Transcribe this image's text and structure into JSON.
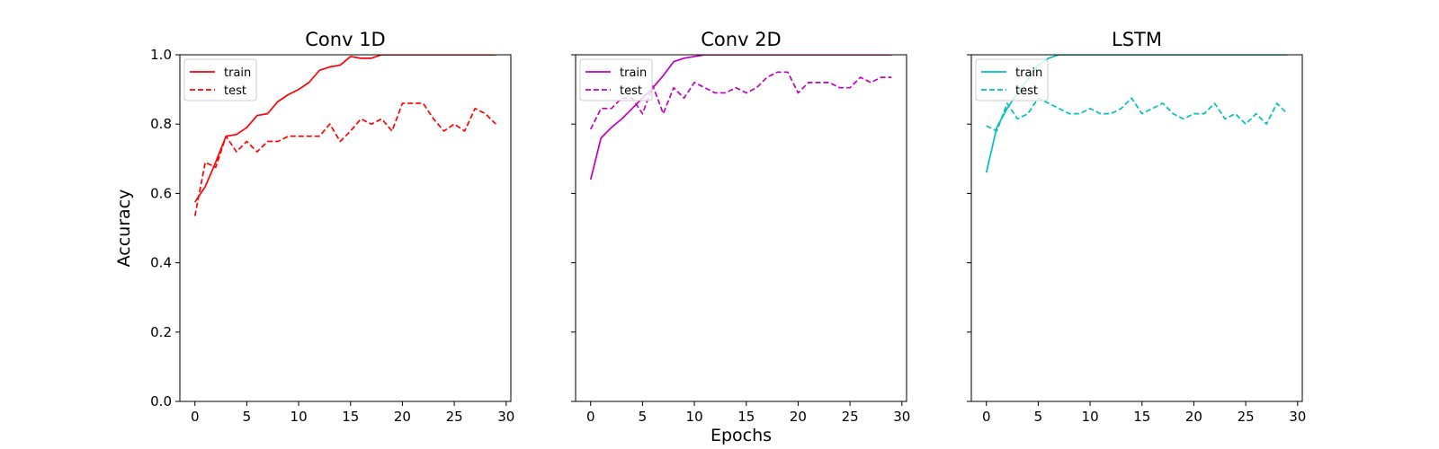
{
  "chart_data": [
    {
      "type": "line",
      "title": "Conv 1D",
      "ylabel": "Accuracy",
      "xlabel": "",
      "xlim": [
        -1.45,
        30.45
      ],
      "ylim": [
        0.0,
        1.0
      ],
      "xticks": [
        0,
        5,
        10,
        15,
        20,
        25,
        30
      ],
      "yticks": [
        0.0,
        0.2,
        0.4,
        0.6,
        0.8,
        1.0
      ],
      "ytick_labels": [
        "0.0",
        "0.2",
        "0.4",
        "0.6",
        "0.8",
        "1.0"
      ],
      "legend_position": "upper-left",
      "color": "#ff0000",
      "series": [
        {
          "name": "train",
          "style": "solid",
          "values": [
            0.575,
            0.62,
            0.69,
            0.765,
            0.77,
            0.79,
            0.825,
            0.83,
            0.865,
            0.885,
            0.9,
            0.92,
            0.955,
            0.965,
            0.97,
            0.995,
            0.99,
            0.99,
            1.0,
            1.0,
            1.0,
            1.0,
            1.0,
            1.0,
            1.0,
            1.0,
            1.0,
            1.0,
            1.0,
            1.0
          ]
        },
        {
          "name": "test",
          "style": "dashed",
          "values": [
            0.535,
            0.69,
            0.675,
            0.765,
            0.72,
            0.75,
            0.72,
            0.75,
            0.75,
            0.765,
            0.765,
            0.765,
            0.765,
            0.8,
            0.75,
            0.78,
            0.815,
            0.8,
            0.815,
            0.78,
            0.86,
            0.86,
            0.86,
            0.815,
            0.78,
            0.8,
            0.78,
            0.845,
            0.83,
            0.8
          ]
        }
      ]
    },
    {
      "type": "line",
      "title": "Conv 2D",
      "ylabel": "",
      "xlabel": "Epochs",
      "xlim": [
        -1.45,
        30.45
      ],
      "ylim": [
        0.0,
        1.0
      ],
      "xticks": [
        0,
        5,
        10,
        15,
        20,
        25,
        30
      ],
      "yticks": [
        0.0,
        0.2,
        0.4,
        0.6,
        0.8,
        1.0
      ],
      "ytick_labels": [],
      "legend_position": "upper-left",
      "color": "#bf00bf",
      "series": [
        {
          "name": "train",
          "style": "solid",
          "values": [
            0.64,
            0.76,
            0.79,
            0.815,
            0.845,
            0.875,
            0.905,
            0.94,
            0.98,
            0.99,
            0.995,
            1.0,
            1.0,
            1.0,
            1.0,
            1.0,
            1.0,
            1.0,
            1.0,
            1.0,
            1.0,
            1.0,
            1.0,
            1.0,
            1.0,
            1.0,
            1.0,
            1.0,
            1.0,
            1.0
          ]
        },
        {
          "name": "test",
          "style": "dashed",
          "values": [
            0.785,
            0.845,
            0.845,
            0.875,
            0.875,
            0.83,
            0.91,
            0.83,
            0.905,
            0.875,
            0.92,
            0.905,
            0.89,
            0.89,
            0.905,
            0.89,
            0.905,
            0.935,
            0.95,
            0.95,
            0.89,
            0.92,
            0.92,
            0.92,
            0.905,
            0.905,
            0.935,
            0.92,
            0.935,
            0.935
          ]
        }
      ]
    },
    {
      "type": "line",
      "title": "LSTM",
      "ylabel": "",
      "xlabel": "",
      "xlim": [
        -1.45,
        30.45
      ],
      "ylim": [
        0.0,
        1.0
      ],
      "xticks": [
        0,
        5,
        10,
        15,
        20,
        25,
        30
      ],
      "yticks": [
        0.0,
        0.2,
        0.4,
        0.6,
        0.8,
        1.0
      ],
      "ytick_labels": [],
      "legend_position": "upper-left",
      "color": "#00bfbf",
      "series": [
        {
          "name": "train",
          "style": "solid",
          "values": [
            0.66,
            0.79,
            0.845,
            0.89,
            0.93,
            0.97,
            0.99,
            1.0,
            1.0,
            1.0,
            1.0,
            1.0,
            1.0,
            1.0,
            1.0,
            1.0,
            1.0,
            1.0,
            1.0,
            1.0,
            1.0,
            1.0,
            1.0,
            1.0,
            1.0,
            1.0,
            1.0,
            1.0,
            1.0,
            1.0
          ]
        },
        {
          "name": "test",
          "style": "dashed",
          "values": [
            0.795,
            0.78,
            0.86,
            0.815,
            0.83,
            0.875,
            0.86,
            0.845,
            0.83,
            0.83,
            0.845,
            0.83,
            0.83,
            0.845,
            0.875,
            0.83,
            0.845,
            0.86,
            0.83,
            0.815,
            0.83,
            0.83,
            0.86,
            0.815,
            0.83,
            0.8,
            0.83,
            0.8,
            0.86,
            0.83
          ]
        }
      ]
    }
  ]
}
